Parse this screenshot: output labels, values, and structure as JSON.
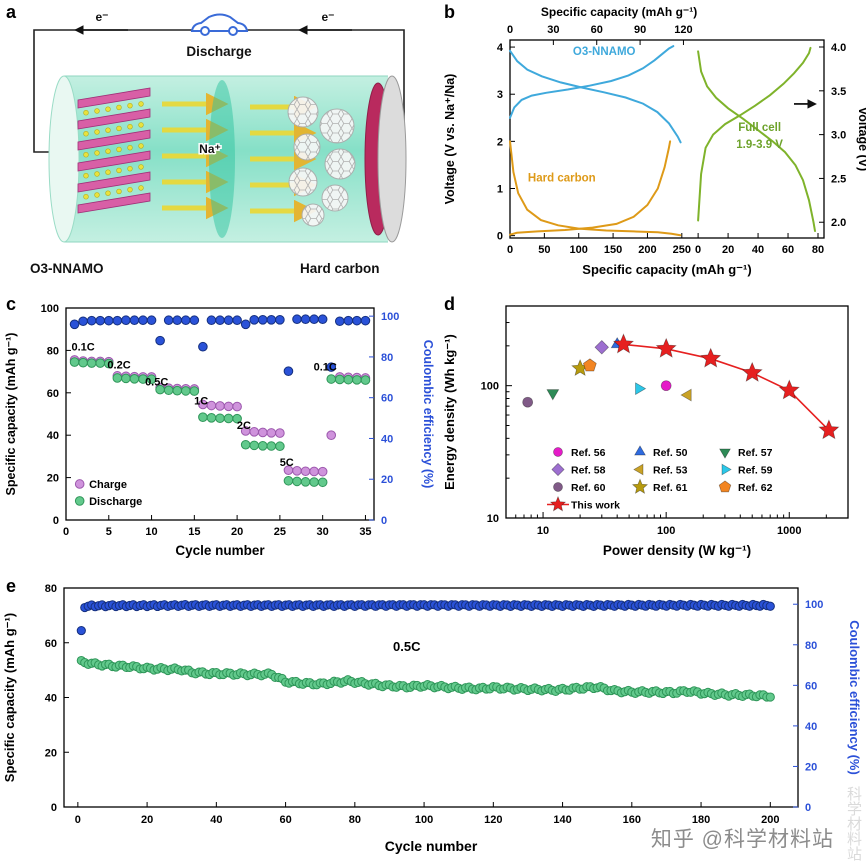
{
  "panel_labels": {
    "a": "a",
    "b": "b",
    "c": "c",
    "d": "d",
    "e": "e"
  },
  "panel_a": {
    "discharge_label": "Discharge",
    "electron_left": "e⁻",
    "electron_right": "e⁻",
    "sodium_ion": "Na⁺",
    "cathode_label": "O3-NNAMO",
    "anode_label": "Hard carbon"
  },
  "watermark": {
    "text": "知乎 @科学材料站",
    "side_text": "科学材料站"
  },
  "chart_data": [
    {
      "panel": "b",
      "type": "line",
      "top_xlabel": "Specific capacity (mAh g⁻¹)",
      "bottom_xlabel": "Specific capacity (mAh g⁻¹)",
      "left_ylabel": "Voltage (V vs. Na⁺/Na)",
      "right_ylabel": "Voltage (V)",
      "top_xlim": [
        0,
        126
      ],
      "top_xticks": [
        0,
        30,
        60,
        90,
        120
      ],
      "bottom_left_xlim": [
        0,
        265
      ],
      "bottom_xticks_left": [
        0,
        50,
        100,
        150,
        200,
        250
      ],
      "bottom_right_xlim": [
        -4,
        84
      ],
      "bottom_xticks_right": [
        0,
        20,
        40,
        60,
        80
      ],
      "left_ylim": [
        -0.05,
        4.15
      ],
      "left_yticks": [
        0,
        1,
        2,
        3,
        4
      ],
      "right_ylim": [
        1.82,
        4.08
      ],
      "right_yticks": [
        2.0,
        2.5,
        3.0,
        3.5,
        4.0
      ],
      "right_axis_arrow_at": 3.35,
      "series": [
        {
          "name": "O3-NNAMO charge",
          "axis": "top",
          "color": "#3fa9dc",
          "points": [
            [
              0,
              2.5
            ],
            [
              3,
              2.72
            ],
            [
              8,
              2.88
            ],
            [
              15,
              2.97
            ],
            [
              25,
              3.03
            ],
            [
              40,
              3.1
            ],
            [
              55,
              3.18
            ],
            [
              70,
              3.28
            ],
            [
              82,
              3.4
            ],
            [
              92,
              3.55
            ],
            [
              100,
              3.72
            ],
            [
              106,
              3.87
            ],
            [
              110,
              3.97
            ],
            [
              113,
              4.02
            ]
          ]
        },
        {
          "name": "O3-NNAMO discharge",
          "axis": "top",
          "color": "#3fa9dc",
          "points": [
            [
              0,
              3.92
            ],
            [
              5,
              3.7
            ],
            [
              12,
              3.52
            ],
            [
              22,
              3.38
            ],
            [
              35,
              3.25
            ],
            [
              50,
              3.14
            ],
            [
              65,
              3.04
            ],
            [
              80,
              2.93
            ],
            [
              92,
              2.8
            ],
            [
              102,
              2.62
            ],
            [
              110,
              2.38
            ],
            [
              116,
              2.1
            ],
            [
              118,
              1.98
            ]
          ]
        },
        {
          "name": "Hard carbon sodiation",
          "axis": "bottom",
          "color": "#de9a18",
          "points": [
            [
              0,
              2.0
            ],
            [
              5,
              1.35
            ],
            [
              12,
              0.9
            ],
            [
              25,
              0.55
            ],
            [
              45,
              0.33
            ],
            [
              70,
              0.22
            ],
            [
              100,
              0.15
            ],
            [
              140,
              0.11
            ],
            [
              180,
              0.09
            ],
            [
              215,
              0.07
            ],
            [
              235,
              0.04
            ],
            [
              248,
              0.01
            ]
          ]
        },
        {
          "name": "Hard carbon desodiation",
          "axis": "bottom",
          "color": "#de9a18",
          "points": [
            [
              0,
              0.02
            ],
            [
              10,
              0.06
            ],
            [
              40,
              0.09
            ],
            [
              80,
              0.12
            ],
            [
              120,
              0.17
            ],
            [
              155,
              0.25
            ],
            [
              180,
              0.4
            ],
            [
              200,
              0.65
            ],
            [
              215,
              1.0
            ],
            [
              225,
              1.45
            ],
            [
              231,
              1.85
            ],
            [
              233,
              2.0
            ]
          ]
        },
        {
          "name": "Full cell charge",
          "axis": "right",
          "color": "#7fb32b",
          "points": [
            [
              0,
              2.02
            ],
            [
              2,
              2.55
            ],
            [
              5,
              2.85
            ],
            [
              10,
              3.0
            ],
            [
              18,
              3.12
            ],
            [
              28,
              3.22
            ],
            [
              38,
              3.33
            ],
            [
              48,
              3.45
            ],
            [
              57,
              3.58
            ],
            [
              64,
              3.7
            ],
            [
              70,
              3.82
            ],
            [
              74,
              3.93
            ],
            [
              75,
              3.99
            ]
          ]
        },
        {
          "name": "Full cell discharge",
          "axis": "right",
          "color": "#7fb32b",
          "points": [
            [
              0,
              3.95
            ],
            [
              2,
              3.72
            ],
            [
              6,
              3.55
            ],
            [
              12,
              3.42
            ],
            [
              20,
              3.3
            ],
            [
              30,
              3.18
            ],
            [
              40,
              3.05
            ],
            [
              50,
              2.92
            ],
            [
              58,
              2.8
            ],
            [
              65,
              2.65
            ],
            [
              70,
              2.48
            ],
            [
              74,
              2.25
            ],
            [
              77,
              2.0
            ],
            [
              78,
              1.9
            ]
          ]
        }
      ],
      "annotations": [
        {
          "text": "O3-NNAMO",
          "color": "#3fa9dc",
          "fx": 0.3,
          "fy": 0.075
        },
        {
          "text": "Hard carbon",
          "color": "#de9a18",
          "fx": 0.165,
          "fy": 0.715
        },
        {
          "text": "Full cell",
          "color": "#6ea32c",
          "fx": 0.795,
          "fy": 0.46
        },
        {
          "text": "1.9-3.9 V",
          "color": "#6ea32c",
          "fx": 0.795,
          "fy": 0.545
        }
      ]
    },
    {
      "panel": "c",
      "type": "scatter",
      "xlabel": "Cycle number",
      "left_ylabel": "Specific capacity (mAh g⁻¹)",
      "right_ylabel": "Coulombic efficiency (%)",
      "xlim": [
        0,
        36
      ],
      "xticks": [
        0,
        5,
        10,
        15,
        20,
        25,
        30,
        35
      ],
      "left_ylim": [
        0,
        100
      ],
      "left_yticks": [
        0,
        20,
        40,
        60,
        80,
        100
      ],
      "right_ylim": [
        0,
        104
      ],
      "right_yticks": [
        0,
        20,
        40,
        60,
        80,
        100
      ],
      "right_axis_color": "#2b50d8",
      "charge": {
        "label": "Charge",
        "color": "#cf93dc",
        "edge": "#9c58ad",
        "values": [
          75.5,
          75,
          74.8,
          74.8,
          74.7,
          68,
          67.8,
          67.6,
          67.5,
          67.5,
          62.5,
          62.2,
          62,
          61.9,
          61.8,
          54.5,
          54,
          53.8,
          53.6,
          53.5,
          42,
          41.6,
          41.3,
          41.1,
          41,
          23.5,
          23.2,
          23,
          22.9,
          22.8,
          40,
          67.5,
          67.3,
          67.2,
          67
        ]
      },
      "discharge": {
        "label": "Discharge",
        "color": "#62c98c",
        "edge": "#2f9659",
        "values": [
          74.5,
          74.2,
          74,
          74,
          73.8,
          67,
          66.8,
          66.6,
          66.5,
          66.4,
          61.5,
          61.2,
          61,
          60.9,
          60.8,
          48.5,
          48.2,
          48,
          47.9,
          47.8,
          35.5,
          35.2,
          35,
          34.9,
          34.8,
          18.5,
          18.2,
          18,
          17.9,
          17.8,
          66.5,
          66.3,
          66.2,
          66.1,
          66
        ]
      },
      "efficiency": {
        "label": "Coulombic efficiency",
        "color": "#2a52d8",
        "edge": "#15307f",
        "values": [
          96,
          97.5,
          97.8,
          97.8,
          97.8,
          97.8,
          98,
          98,
          98,
          98,
          88,
          98,
          98,
          98,
          98,
          85,
          98,
          98,
          98,
          98,
          96,
          98.2,
          98.2,
          98.2,
          98.2,
          73,
          98.5,
          98.5,
          98.5,
          98.5,
          75,
          97.5,
          97.8,
          97.8,
          97.8
        ]
      },
      "rate_labels": [
        {
          "text": "0.1C",
          "x": 2.0,
          "y": 80
        },
        {
          "text": "0.2C",
          "x": 6.2,
          "y": 71.5
        },
        {
          "text": "0.5C",
          "x": 10.6,
          "y": 63.5
        },
        {
          "text": "1C",
          "x": 15.8,
          "y": 54.5
        },
        {
          "text": "2C",
          "x": 20.8,
          "y": 43
        },
        {
          "text": "5C",
          "x": 25.8,
          "y": 25.5
        },
        {
          "text": "0.1C",
          "x": 30.3,
          "y": 70.5
        }
      ]
    },
    {
      "panel": "d",
      "type": "scatter-log",
      "xlabel": "Power density (W kg⁻¹)",
      "ylabel": "Energy density (Wh kg⁻¹)",
      "xlim": [
        5,
        3000
      ],
      "ylim": [
        10,
        400
      ],
      "xticks": [
        10,
        100,
        1000
      ],
      "yticks": [
        10,
        100
      ],
      "x_minor": [
        6,
        7,
        8,
        9,
        20,
        30,
        40,
        50,
        60,
        70,
        80,
        90,
        200,
        300,
        400,
        500,
        600,
        700,
        800,
        900,
        2000,
        3000
      ],
      "y_minor": [
        20,
        30,
        40,
        50,
        60,
        70,
        80,
        90,
        200,
        300,
        400
      ],
      "series": [
        {
          "name": "Ref. 56",
          "marker": "circle",
          "color": "#e51bc8",
          "points": [
            [
              100,
              100
            ]
          ]
        },
        {
          "name": "Ref. 50",
          "marker": "triangle-up",
          "color": "#2f6bdf",
          "points": [
            [
              40,
              205
            ]
          ]
        },
        {
          "name": "Ref. 57",
          "marker": "triangle-down",
          "color": "#2e8b57",
          "points": [
            [
              12,
              88
            ]
          ]
        },
        {
          "name": "Ref. 58",
          "marker": "diamond",
          "color": "#9d6fd0",
          "points": [
            [
              30,
              195
            ]
          ]
        },
        {
          "name": "Ref. 53",
          "marker": "triangle-left",
          "color": "#c9a227",
          "points": [
            [
              150,
              85
            ]
          ]
        },
        {
          "name": "Ref. 59",
          "marker": "triangle-right",
          "color": "#2cc7e8",
          "points": [
            [
              60,
              95
            ]
          ]
        },
        {
          "name": "Ref. 60",
          "marker": "circle",
          "color": "#805a87",
          "points": [
            [
              7.5,
              75
            ]
          ]
        },
        {
          "name": "Ref. 61",
          "marker": "star",
          "color": "#b79b0e",
          "points": [
            [
              20,
              135
            ]
          ]
        },
        {
          "name": "Ref. 62",
          "marker": "pentagon",
          "color": "#f28522",
          "points": [
            [
              24,
              142
            ]
          ]
        },
        {
          "name": "This work",
          "marker": "star",
          "color": "#e62020",
          "line": true,
          "points": [
            [
              45,
              205
            ],
            [
              100,
              190
            ],
            [
              230,
              160
            ],
            [
              500,
              125
            ],
            [
              1000,
              92
            ],
            [
              2100,
              46
            ]
          ]
        }
      ],
      "legend_rows": [
        [
          "Ref. 56",
          "Ref. 50",
          "Ref. 57"
        ],
        [
          "Ref. 58",
          "Ref. 53",
          "Ref. 59"
        ],
        [
          "Ref. 60",
          "Ref. 61",
          "Ref. 62"
        ],
        [
          "This work"
        ]
      ]
    },
    {
      "panel": "e",
      "type": "scatter",
      "xlabel": "Cycle number",
      "left_ylabel": "Specific capacity (mAh g⁻¹)",
      "right_ylabel": "Coulombic efficiency (%)",
      "xlim": [
        -4,
        208
      ],
      "xticks": [
        0,
        20,
        40,
        60,
        80,
        100,
        120,
        140,
        160,
        180,
        200
      ],
      "left_ylim": [
        0,
        80
      ],
      "left_yticks": [
        0,
        20,
        40,
        60,
        80
      ],
      "right_ylim": [
        0,
        108
      ],
      "right_yticks": [
        0,
        20,
        40,
        60,
        80,
        100
      ],
      "right_axis_color": "#2b50d8",
      "rate_label": {
        "text": "0.5C",
        "x": 95,
        "y": 57
      },
      "capacity": {
        "color": "#62c98c",
        "edge": "#2f9659",
        "anchors": [
          [
            1,
            53
          ],
          [
            5,
            52.2
          ],
          [
            10,
            51.6
          ],
          [
            15,
            51.3
          ],
          [
            20,
            50.6
          ],
          [
            25,
            50.4
          ],
          [
            30,
            50.2
          ],
          [
            33,
            49.2
          ],
          [
            38,
            48.8
          ],
          [
            45,
            48.6
          ],
          [
            52,
            48.4
          ],
          [
            56,
            48.5
          ],
          [
            60,
            45.8
          ],
          [
            65,
            45.2
          ],
          [
            70,
            44.9
          ],
          [
            75,
            45.6
          ],
          [
            78,
            46
          ],
          [
            82,
            45.3
          ],
          [
            88,
            44.4
          ],
          [
            95,
            43.9
          ],
          [
            100,
            44.3
          ],
          [
            105,
            43.9
          ],
          [
            110,
            43.5
          ],
          [
            116,
            43.2
          ],
          [
            120,
            43.6
          ],
          [
            126,
            43.2
          ],
          [
            132,
            43
          ],
          [
            138,
            42.7
          ],
          [
            144,
            43.3
          ],
          [
            150,
            43.8
          ],
          [
            155,
            42.4
          ],
          [
            160,
            42
          ],
          [
            166,
            42
          ],
          [
            172,
            41.8
          ],
          [
            176,
            42.3
          ],
          [
            182,
            41.4
          ],
          [
            188,
            41
          ],
          [
            194,
            40.8
          ],
          [
            200,
            40.5
          ]
        ]
      },
      "efficiency": {
        "color": "#2a52d8",
        "edge": "#15307f",
        "first": [
          1,
          87
        ],
        "anchors": [
          [
            2,
            98.8
          ],
          [
            4,
            99.2
          ],
          [
            10,
            99.3
          ],
          [
            30,
            99.4
          ],
          [
            60,
            99.4
          ],
          [
            100,
            99.5
          ],
          [
            140,
            99.4
          ],
          [
            170,
            99.5
          ],
          [
            200,
            99.4
          ]
        ]
      }
    }
  ]
}
